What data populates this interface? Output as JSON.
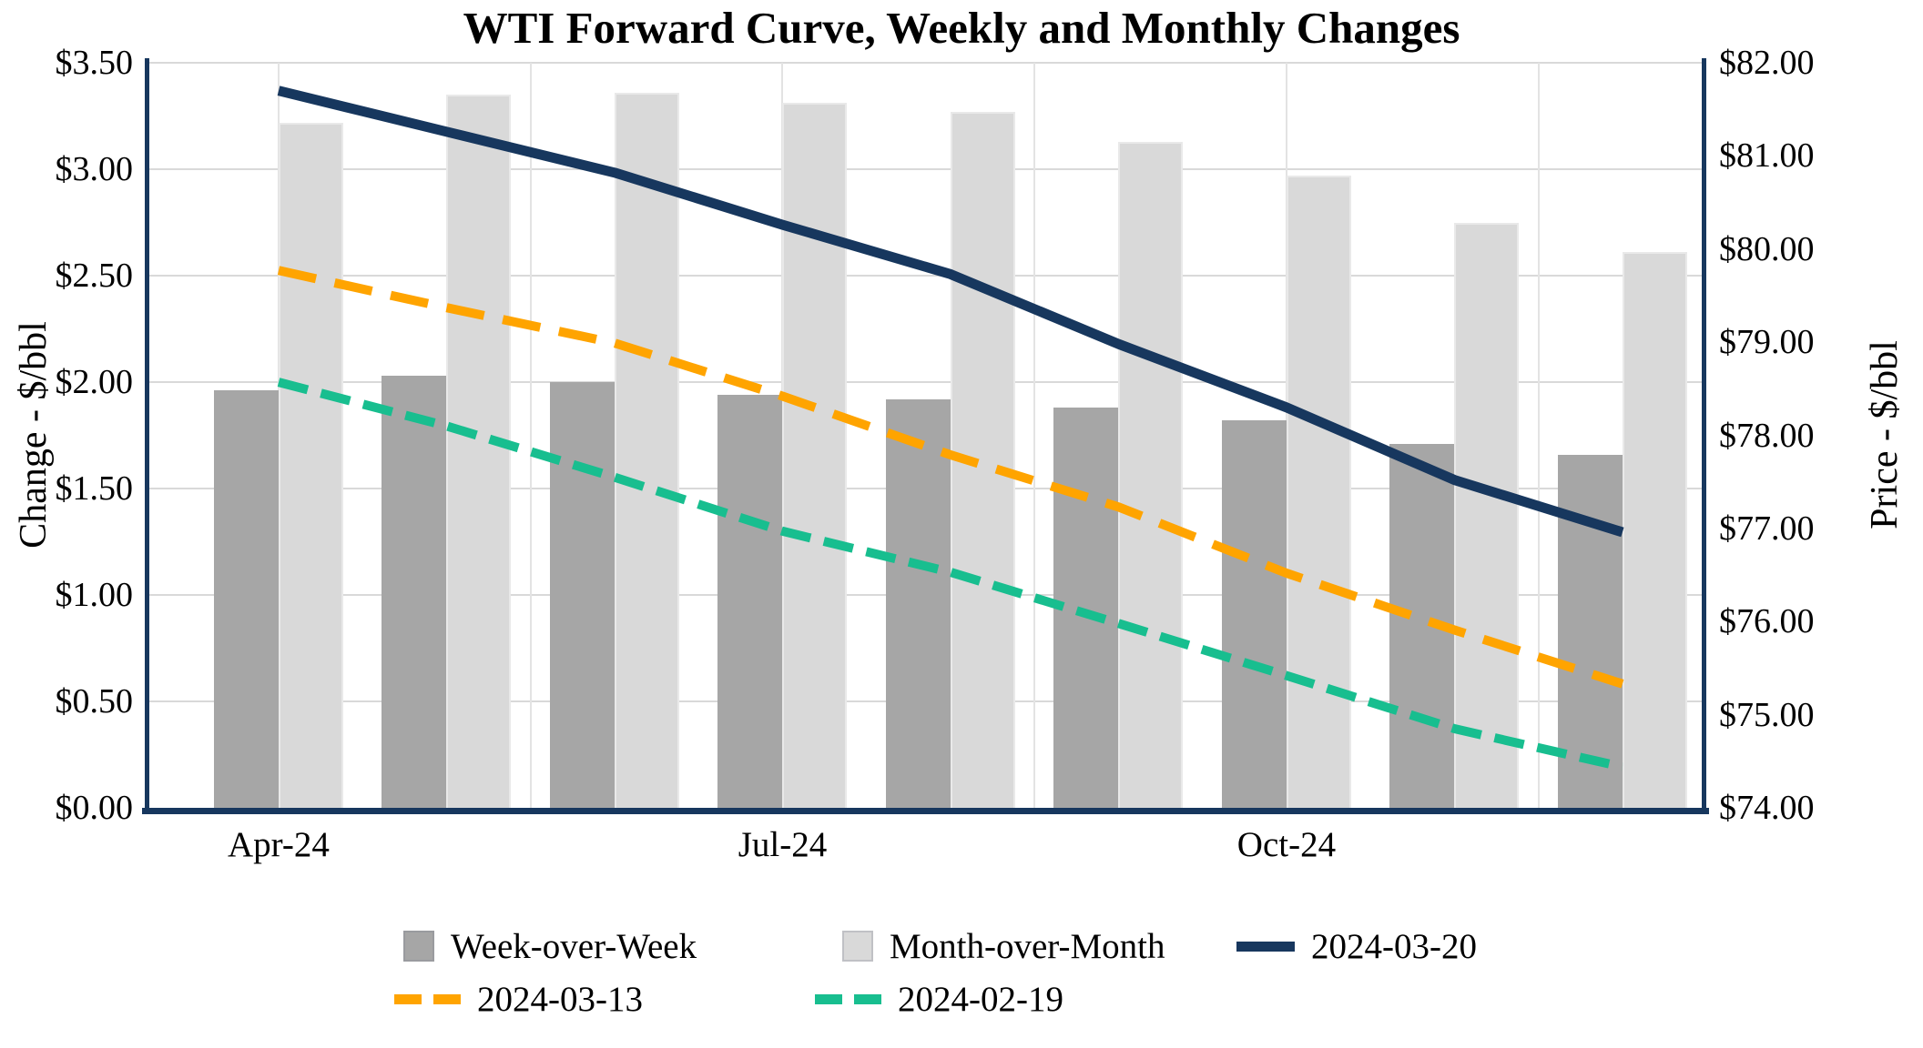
{
  "title": "WTI Forward Curve, Weekly and Monthly Changes",
  "left_axis": {
    "title": "Change - $/bbl",
    "ticks": [
      "$3.50",
      "$3.00",
      "$2.50",
      "$2.00",
      "$1.50",
      "$1.00",
      "$0.50",
      "$0.00"
    ],
    "min": 0,
    "max": 3.5
  },
  "right_axis": {
    "title": "Price - $/bbl",
    "ticks": [
      "$82.00",
      "$81.00",
      "$80.00",
      "$79.00",
      "$78.00",
      "$77.00",
      "$76.00",
      "$75.00",
      "$74.00"
    ],
    "min": 74,
    "max": 82
  },
  "x_axis": {
    "tick_labels": [
      "Apr-24",
      "Jul-24",
      "Oct-24"
    ],
    "tick_category_indexes": [
      0,
      3,
      6
    ]
  },
  "colors": {
    "axis": "#17375E",
    "grid_h": "#D9D9D9",
    "grid_v": "#E3E3E3",
    "wow_bar": "#A6A6A6",
    "mom_bar": "#D9D9D9",
    "line_0320": "#17375E",
    "line_0313": "#FFA400",
    "line_0219": "#18BE8F"
  },
  "legend": {
    "items": [
      {
        "label": "Week-over-Week",
        "swatch": "square",
        "color": "#A6A6A6"
      },
      {
        "label": "Month-over-Month",
        "swatch": "square",
        "color": "#D9D9D9"
      },
      {
        "label": "2024-03-20",
        "swatch": "line",
        "color": "#17375E"
      },
      {
        "label": "2024-03-13",
        "swatch": "dash",
        "color": "#FFA400"
      },
      {
        "label": "2024-02-19",
        "swatch": "dash",
        "color": "#18BE8F"
      }
    ]
  },
  "chart_data": {
    "type": "combo-bar-line",
    "categories": [
      "Apr-24",
      "May-24",
      "Jun-24",
      "Jul-24",
      "Aug-24",
      "Sep-24",
      "Oct-24",
      "Nov-24",
      "Dec-24"
    ],
    "bar_series": [
      {
        "name": "Week-over-Week",
        "axis": "left",
        "color": "#A6A6A6",
        "values": [
          1.96,
          2.03,
          2.0,
          1.94,
          1.92,
          1.88,
          1.82,
          1.71,
          1.66
        ]
      },
      {
        "name": "Month-over-Month",
        "axis": "left",
        "color": "#D9D9D9",
        "values": [
          3.22,
          3.35,
          3.36,
          3.31,
          3.27,
          3.13,
          2.97,
          2.75,
          2.61
        ]
      }
    ],
    "line_series": [
      {
        "name": "2024-03-20",
        "axis": "right",
        "color": "#17375E",
        "style": "solid",
        "values": [
          81.7,
          81.26,
          80.82,
          80.26,
          79.73,
          78.98,
          78.3,
          77.52,
          76.96
        ]
      },
      {
        "name": "2024-03-13",
        "axis": "right",
        "color": "#FFA400",
        "style": "dashed",
        "values": [
          79.77,
          79.37,
          78.99,
          78.42,
          77.79,
          77.23,
          76.52,
          75.91,
          75.33
        ]
      },
      {
        "name": "2024-02-19",
        "axis": "right",
        "color": "#18BE8F",
        "style": "dashed",
        "values": [
          78.57,
          78.1,
          77.55,
          76.97,
          76.53,
          75.98,
          75.42,
          74.85,
          74.44
        ]
      }
    ],
    "left_ylim": [
      0,
      3.5
    ],
    "right_ylim": [
      74,
      82
    ],
    "grid": "horizontal-major + vertical-half-quarter",
    "legend_position": "bottom"
  }
}
